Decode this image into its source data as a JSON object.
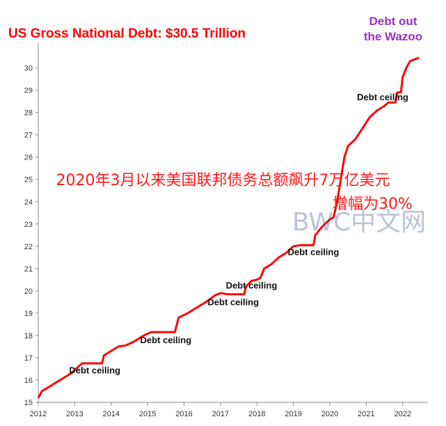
{
  "title": "US Gross National Debt: $30.5 Trillion",
  "corner_note": [
    "Debt out",
    "the Wazoo"
  ],
  "overlay": {
    "line1": "2020年3月以来美国联邦债务总额飙升7万亿美元",
    "line2": "增幅为30%"
  },
  "watermark": "BWC中文网",
  "colors": {
    "title": "#ff0000",
    "series": "#ff0000",
    "corner_note": "#9b30c8",
    "overlay": "#ff1a1a"
  },
  "chart_data": {
    "type": "line",
    "title": "US Gross National Debt: $30.5 Trillion",
    "xlabel": "",
    "ylabel": "",
    "xlim": [
      2012,
      2022.5
    ],
    "ylim": [
      15,
      30.8
    ],
    "x_ticks": [
      "2012",
      "2013",
      "2014",
      "2015",
      "2016",
      "2017",
      "2018",
      "2019",
      "2020",
      "2021",
      "2022"
    ],
    "y_ticks": [
      "15",
      "16",
      "17",
      "18",
      "19",
      "20",
      "21",
      "22",
      "23",
      "24",
      "25",
      "26",
      "27",
      "28",
      "29",
      "30"
    ],
    "grid": false,
    "series": [
      {
        "points": [
          [
            2012.0,
            15.2
          ],
          [
            2012.1,
            15.5
          ],
          [
            2012.3,
            15.7
          ],
          [
            2012.6,
            16.0
          ],
          [
            2012.9,
            16.3
          ],
          [
            2013.1,
            16.6
          ],
          [
            2013.2,
            16.75
          ],
          [
            2013.3,
            16.75
          ],
          [
            2013.75,
            16.75
          ],
          [
            2013.8,
            17.1
          ],
          [
            2014.0,
            17.3
          ],
          [
            2014.2,
            17.5
          ],
          [
            2014.4,
            17.55
          ],
          [
            2014.6,
            17.7
          ],
          [
            2014.9,
            18.0
          ],
          [
            2015.1,
            18.15
          ],
          [
            2015.2,
            18.15
          ],
          [
            2015.75,
            18.15
          ],
          [
            2015.85,
            18.8
          ],
          [
            2016.1,
            19.0
          ],
          [
            2016.3,
            19.2
          ],
          [
            2016.6,
            19.5
          ],
          [
            2016.85,
            19.8
          ],
          [
            2017.0,
            19.9
          ],
          [
            2017.2,
            19.85
          ],
          [
            2017.65,
            19.85
          ],
          [
            2017.7,
            20.2
          ],
          [
            2017.85,
            20.45
          ],
          [
            2018.0,
            20.5
          ],
          [
            2018.1,
            20.6
          ],
          [
            2018.2,
            21.0
          ],
          [
            2018.4,
            21.2
          ],
          [
            2018.6,
            21.5
          ],
          [
            2018.8,
            21.7
          ],
          [
            2019.0,
            22.0
          ],
          [
            2019.2,
            22.05
          ],
          [
            2019.55,
            22.05
          ],
          [
            2019.6,
            22.5
          ],
          [
            2019.8,
            22.9
          ],
          [
            2020.0,
            23.2
          ],
          [
            2020.1,
            23.3
          ],
          [
            2020.2,
            24.0
          ],
          [
            2020.3,
            25.0
          ],
          [
            2020.4,
            26.0
          ],
          [
            2020.5,
            26.5
          ],
          [
            2020.7,
            26.8
          ],
          [
            2020.9,
            27.3
          ],
          [
            2021.1,
            27.8
          ],
          [
            2021.3,
            28.1
          ],
          [
            2021.5,
            28.3
          ],
          [
            2021.6,
            28.45
          ],
          [
            2021.8,
            28.45
          ],
          [
            2021.85,
            28.9
          ],
          [
            2021.95,
            28.9
          ],
          [
            2022.0,
            29.6
          ],
          [
            2022.1,
            30.0
          ],
          [
            2022.2,
            30.3
          ],
          [
            2022.35,
            30.4
          ],
          [
            2022.45,
            30.45
          ]
        ]
      }
    ],
    "annotations": [
      {
        "text": "Debt ceiling",
        "x": 2013.55,
        "y": 16.3
      },
      {
        "text": "Debt ceiling",
        "x": 2015.5,
        "y": 17.65
      },
      {
        "text": "Debt ceiling",
        "x": 2017.35,
        "y": 19.35
      },
      {
        "text": "Debt ceiling",
        "x": 2017.85,
        "y": 20.1
      },
      {
        "text": "Debt ceiling",
        "x": 2019.55,
        "y": 21.6
      },
      {
        "text": "Debt ceiling",
        "x": 2021.45,
        "y": 28.55
      }
    ]
  }
}
